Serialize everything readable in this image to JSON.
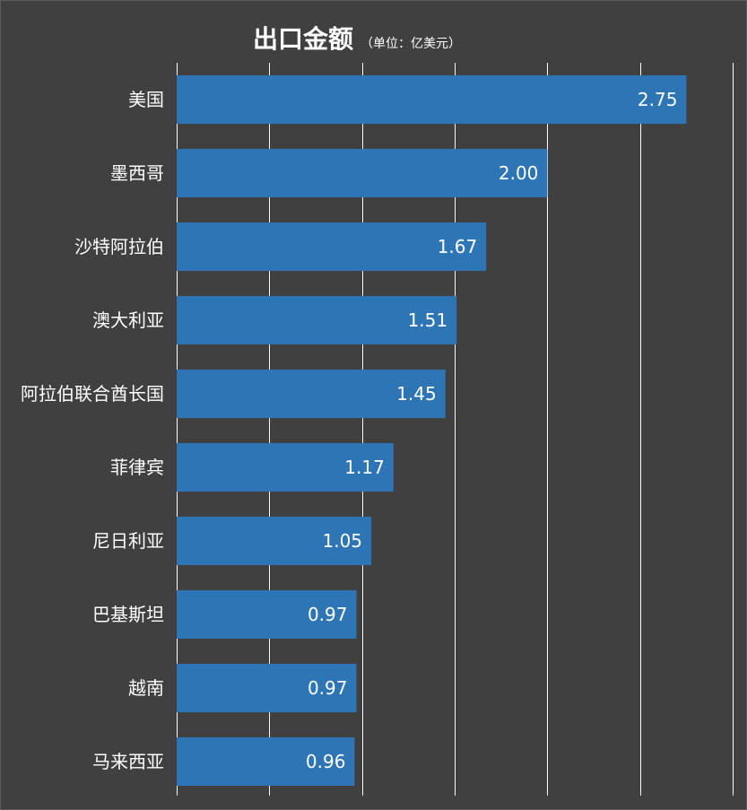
{
  "chart_data": {
    "type": "bar",
    "orientation": "horizontal",
    "title": "出口金额",
    "subtitle": "（单位：亿美元）",
    "categories": [
      "美国",
      "墨西哥",
      "沙特阿拉伯",
      "澳大利亚",
      "阿拉伯联合酋长国",
      "菲律宾",
      "尼日利亚",
      "巴基斯坦",
      "越南",
      "马来西亚"
    ],
    "values": [
      2.75,
      2.0,
      1.67,
      1.51,
      1.45,
      1.17,
      1.05,
      0.97,
      0.97,
      0.96
    ],
    "value_labels": [
      "2.75",
      "2.00",
      "1.67",
      "1.51",
      "1.45",
      "1.17",
      "1.05",
      "0.97",
      "0.97",
      "0.96"
    ],
    "xlim": [
      0,
      3.0
    ],
    "x_gridlines": [
      0,
      0.5,
      1.0,
      1.5,
      2.0,
      2.5,
      3.0
    ],
    "grid": true,
    "bar_color": "#2e75b6",
    "background_color": "#404040",
    "grid_color": "#ffffff"
  }
}
